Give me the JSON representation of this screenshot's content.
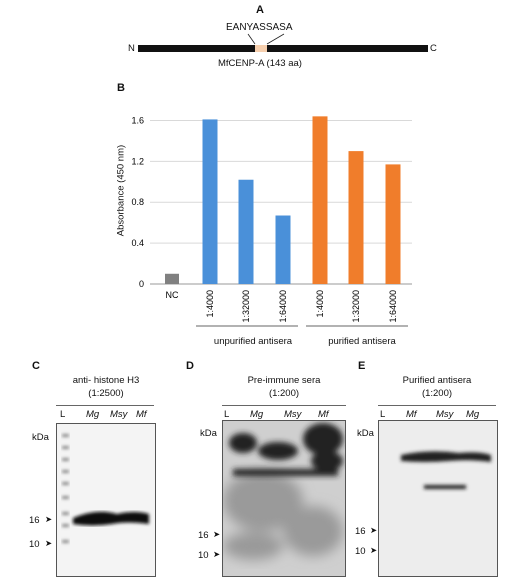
{
  "panelA": {
    "label": "A",
    "n_term": "N",
    "c_term": "C",
    "peptide": "EANYASSASA",
    "protein": "MfCENP-A (143 aa)"
  },
  "panelB": {
    "label": "B",
    "group1": "unpurified antisera",
    "group2": "purified antisera"
  },
  "chart_data": {
    "type": "bar",
    "ylabel": "Absorbance (450 nm)",
    "ylim": [
      0,
      1.8
    ],
    "yticks": [
      "0",
      "0.4",
      "0.8",
      "1.2",
      "1.6"
    ],
    "grid": true,
    "categories": [
      "NC",
      "1:4000",
      "1:32000",
      "1:64000",
      "1:4000",
      "1:32000",
      "1:64000"
    ],
    "values": [
      0.1,
      1.61,
      1.02,
      0.67,
      1.64,
      1.3,
      1.17
    ],
    "colors": [
      "#808080",
      "#4a90d9",
      "#4a90d9",
      "#4a90d9",
      "#f07d2b",
      "#f07d2b",
      "#f07d2b"
    ]
  },
  "panelC": {
    "label": "C",
    "title1": "anti- histone H3",
    "title2": "(1:2500)",
    "lanes": [
      "L",
      "Mg",
      "Msy",
      "Mf"
    ],
    "kda": "kDa",
    "markers": [
      "16",
      "10"
    ]
  },
  "panelD": {
    "label": "D",
    "title1": "Pre-immune sera",
    "title2": "(1:200)",
    "lanes": [
      "L",
      "Mg",
      "Msy",
      "Mf"
    ],
    "kda": "kDa",
    "markers": [
      "16",
      "10"
    ]
  },
  "panelE": {
    "label": "E",
    "title1": "Purified antisera",
    "title2": "(1:200)",
    "lanes": [
      "L",
      "Mf",
      "Msy",
      "Mg"
    ],
    "kda": "kDa",
    "markers": [
      "16",
      "10"
    ]
  }
}
